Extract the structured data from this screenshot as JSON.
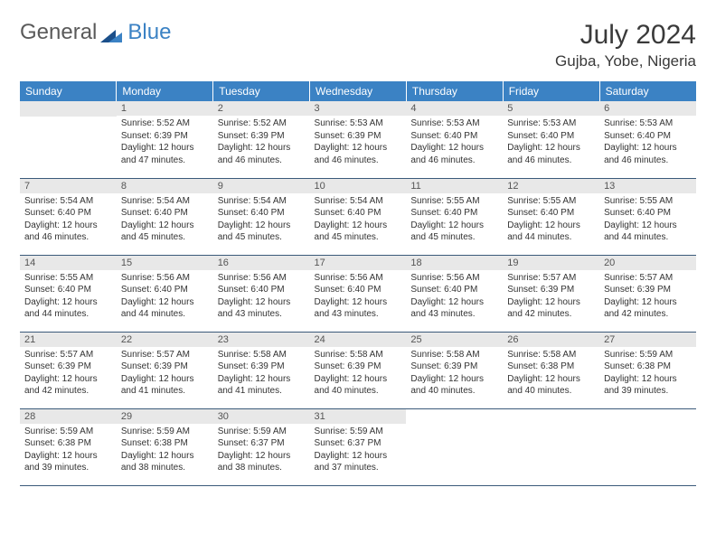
{
  "logo": {
    "text1": "General",
    "text2": "Blue"
  },
  "title": "July 2024",
  "location": "Gujba, Yobe, Nigeria",
  "colors": {
    "header_bg": "#3b82c4",
    "header_text": "#ffffff",
    "daynum_bg": "#e8e8e8",
    "daynum_text": "#555555",
    "cell_text": "#333333",
    "row_divider": "#3b5a7a",
    "logo_accent": "#3b82c4",
    "logo_gray": "#5a5a5a"
  },
  "weekdays": [
    "Sunday",
    "Monday",
    "Tuesday",
    "Wednesday",
    "Thursday",
    "Friday",
    "Saturday"
  ],
  "first_day_col": 1,
  "days": [
    {
      "n": 1,
      "sr": "5:52 AM",
      "ss": "6:39 PM",
      "dl": "12 hours and 47 minutes."
    },
    {
      "n": 2,
      "sr": "5:52 AM",
      "ss": "6:39 PM",
      "dl": "12 hours and 46 minutes."
    },
    {
      "n": 3,
      "sr": "5:53 AM",
      "ss": "6:39 PM",
      "dl": "12 hours and 46 minutes."
    },
    {
      "n": 4,
      "sr": "5:53 AM",
      "ss": "6:40 PM",
      "dl": "12 hours and 46 minutes."
    },
    {
      "n": 5,
      "sr": "5:53 AM",
      "ss": "6:40 PM",
      "dl": "12 hours and 46 minutes."
    },
    {
      "n": 6,
      "sr": "5:53 AM",
      "ss": "6:40 PM",
      "dl": "12 hours and 46 minutes."
    },
    {
      "n": 7,
      "sr": "5:54 AM",
      "ss": "6:40 PM",
      "dl": "12 hours and 46 minutes."
    },
    {
      "n": 8,
      "sr": "5:54 AM",
      "ss": "6:40 PM",
      "dl": "12 hours and 45 minutes."
    },
    {
      "n": 9,
      "sr": "5:54 AM",
      "ss": "6:40 PM",
      "dl": "12 hours and 45 minutes."
    },
    {
      "n": 10,
      "sr": "5:54 AM",
      "ss": "6:40 PM",
      "dl": "12 hours and 45 minutes."
    },
    {
      "n": 11,
      "sr": "5:55 AM",
      "ss": "6:40 PM",
      "dl": "12 hours and 45 minutes."
    },
    {
      "n": 12,
      "sr": "5:55 AM",
      "ss": "6:40 PM",
      "dl": "12 hours and 44 minutes."
    },
    {
      "n": 13,
      "sr": "5:55 AM",
      "ss": "6:40 PM",
      "dl": "12 hours and 44 minutes."
    },
    {
      "n": 14,
      "sr": "5:55 AM",
      "ss": "6:40 PM",
      "dl": "12 hours and 44 minutes."
    },
    {
      "n": 15,
      "sr": "5:56 AM",
      "ss": "6:40 PM",
      "dl": "12 hours and 44 minutes."
    },
    {
      "n": 16,
      "sr": "5:56 AM",
      "ss": "6:40 PM",
      "dl": "12 hours and 43 minutes."
    },
    {
      "n": 17,
      "sr": "5:56 AM",
      "ss": "6:40 PM",
      "dl": "12 hours and 43 minutes."
    },
    {
      "n": 18,
      "sr": "5:56 AM",
      "ss": "6:40 PM",
      "dl": "12 hours and 43 minutes."
    },
    {
      "n": 19,
      "sr": "5:57 AM",
      "ss": "6:39 PM",
      "dl": "12 hours and 42 minutes."
    },
    {
      "n": 20,
      "sr": "5:57 AM",
      "ss": "6:39 PM",
      "dl": "12 hours and 42 minutes."
    },
    {
      "n": 21,
      "sr": "5:57 AM",
      "ss": "6:39 PM",
      "dl": "12 hours and 42 minutes."
    },
    {
      "n": 22,
      "sr": "5:57 AM",
      "ss": "6:39 PM",
      "dl": "12 hours and 41 minutes."
    },
    {
      "n": 23,
      "sr": "5:58 AM",
      "ss": "6:39 PM",
      "dl": "12 hours and 41 minutes."
    },
    {
      "n": 24,
      "sr": "5:58 AM",
      "ss": "6:39 PM",
      "dl": "12 hours and 40 minutes."
    },
    {
      "n": 25,
      "sr": "5:58 AM",
      "ss": "6:39 PM",
      "dl": "12 hours and 40 minutes."
    },
    {
      "n": 26,
      "sr": "5:58 AM",
      "ss": "6:38 PM",
      "dl": "12 hours and 40 minutes."
    },
    {
      "n": 27,
      "sr": "5:59 AM",
      "ss": "6:38 PM",
      "dl": "12 hours and 39 minutes."
    },
    {
      "n": 28,
      "sr": "5:59 AM",
      "ss": "6:38 PM",
      "dl": "12 hours and 39 minutes."
    },
    {
      "n": 29,
      "sr": "5:59 AM",
      "ss": "6:38 PM",
      "dl": "12 hours and 38 minutes."
    },
    {
      "n": 30,
      "sr": "5:59 AM",
      "ss": "6:37 PM",
      "dl": "12 hours and 38 minutes."
    },
    {
      "n": 31,
      "sr": "5:59 AM",
      "ss": "6:37 PM",
      "dl": "12 hours and 37 minutes."
    }
  ],
  "labels": {
    "sunrise": "Sunrise:",
    "sunset": "Sunset:",
    "daylight": "Daylight:"
  }
}
